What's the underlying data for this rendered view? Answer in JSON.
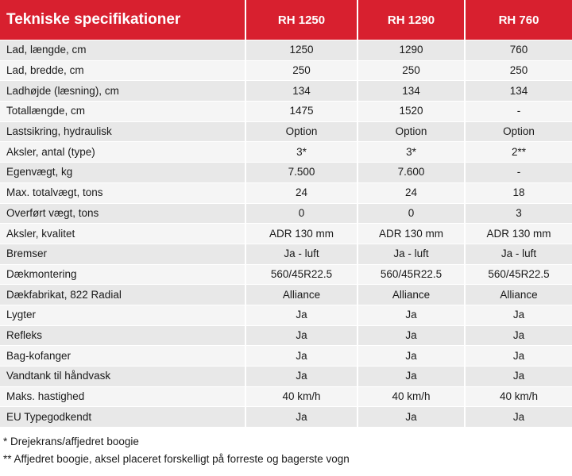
{
  "table": {
    "title": "Tekniske specifikationer",
    "models": [
      "RH 1250",
      "RH 1290",
      "RH 760"
    ],
    "rows": [
      {
        "label": "Lad, længde, cm",
        "values": [
          "1250",
          "1290",
          "760"
        ]
      },
      {
        "label": "Lad, bredde, cm",
        "values": [
          "250",
          "250",
          "250"
        ]
      },
      {
        "label": "Ladhøjde (læsning), cm",
        "values": [
          "134",
          "134",
          "134"
        ]
      },
      {
        "label": "Totallængde, cm",
        "values": [
          "1475",
          "1520",
          "-"
        ]
      },
      {
        "label": "Lastsikring, hydraulisk",
        "values": [
          "Option",
          "Option",
          "Option"
        ]
      },
      {
        "label": "Aksler, antal (type)",
        "values": [
          "3*",
          "3*",
          "2**"
        ]
      },
      {
        "label": "Egenvægt, kg",
        "values": [
          "7.500",
          "7.600",
          "-"
        ]
      },
      {
        "label": "Max. totalvægt, tons",
        "values": [
          "24",
          "24",
          "18"
        ]
      },
      {
        "label": "Overført vægt, tons",
        "values": [
          "0",
          "0",
          "3"
        ]
      },
      {
        "label": "Aksler, kvalitet",
        "values": [
          "ADR 130 mm",
          "ADR 130 mm",
          "ADR 130 mm"
        ]
      },
      {
        "label": "Bremser",
        "values": [
          "Ja - luft",
          "Ja - luft",
          "Ja - luft"
        ]
      },
      {
        "label": "Dækmontering",
        "values": [
          "560/45R22.5",
          "560/45R22.5",
          "560/45R22.5"
        ]
      },
      {
        "label": "Dækfabrikat, 822 Radial",
        "values": [
          "Alliance",
          "Alliance",
          "Alliance"
        ]
      },
      {
        "label": "Lygter",
        "values": [
          "Ja",
          "Ja",
          "Ja"
        ]
      },
      {
        "label": "Refleks",
        "values": [
          "Ja",
          "Ja",
          "Ja"
        ]
      },
      {
        "label": "Bag-kofanger",
        "values": [
          "Ja",
          "Ja",
          "Ja"
        ]
      },
      {
        "label": "Vandtank til håndvask",
        "values": [
          "Ja",
          "Ja",
          "Ja"
        ]
      },
      {
        "label": "Maks. hastighed",
        "values": [
          "40 km/h",
          "40 km/h",
          "40 km/h"
        ]
      },
      {
        "label": "EU Typegodkendt",
        "values": [
          "Ja",
          "Ja",
          "Ja"
        ]
      }
    ]
  },
  "footnotes": [
    "* Drejekrans/affjedret boogie",
    "** Affjedret boogie, aksel placeret forskelligt på forreste og bagerste vogn"
  ],
  "colors": {
    "header_red": "#d8202f",
    "row_odd": "#e8e8e8",
    "row_even": "#f5f5f5"
  }
}
